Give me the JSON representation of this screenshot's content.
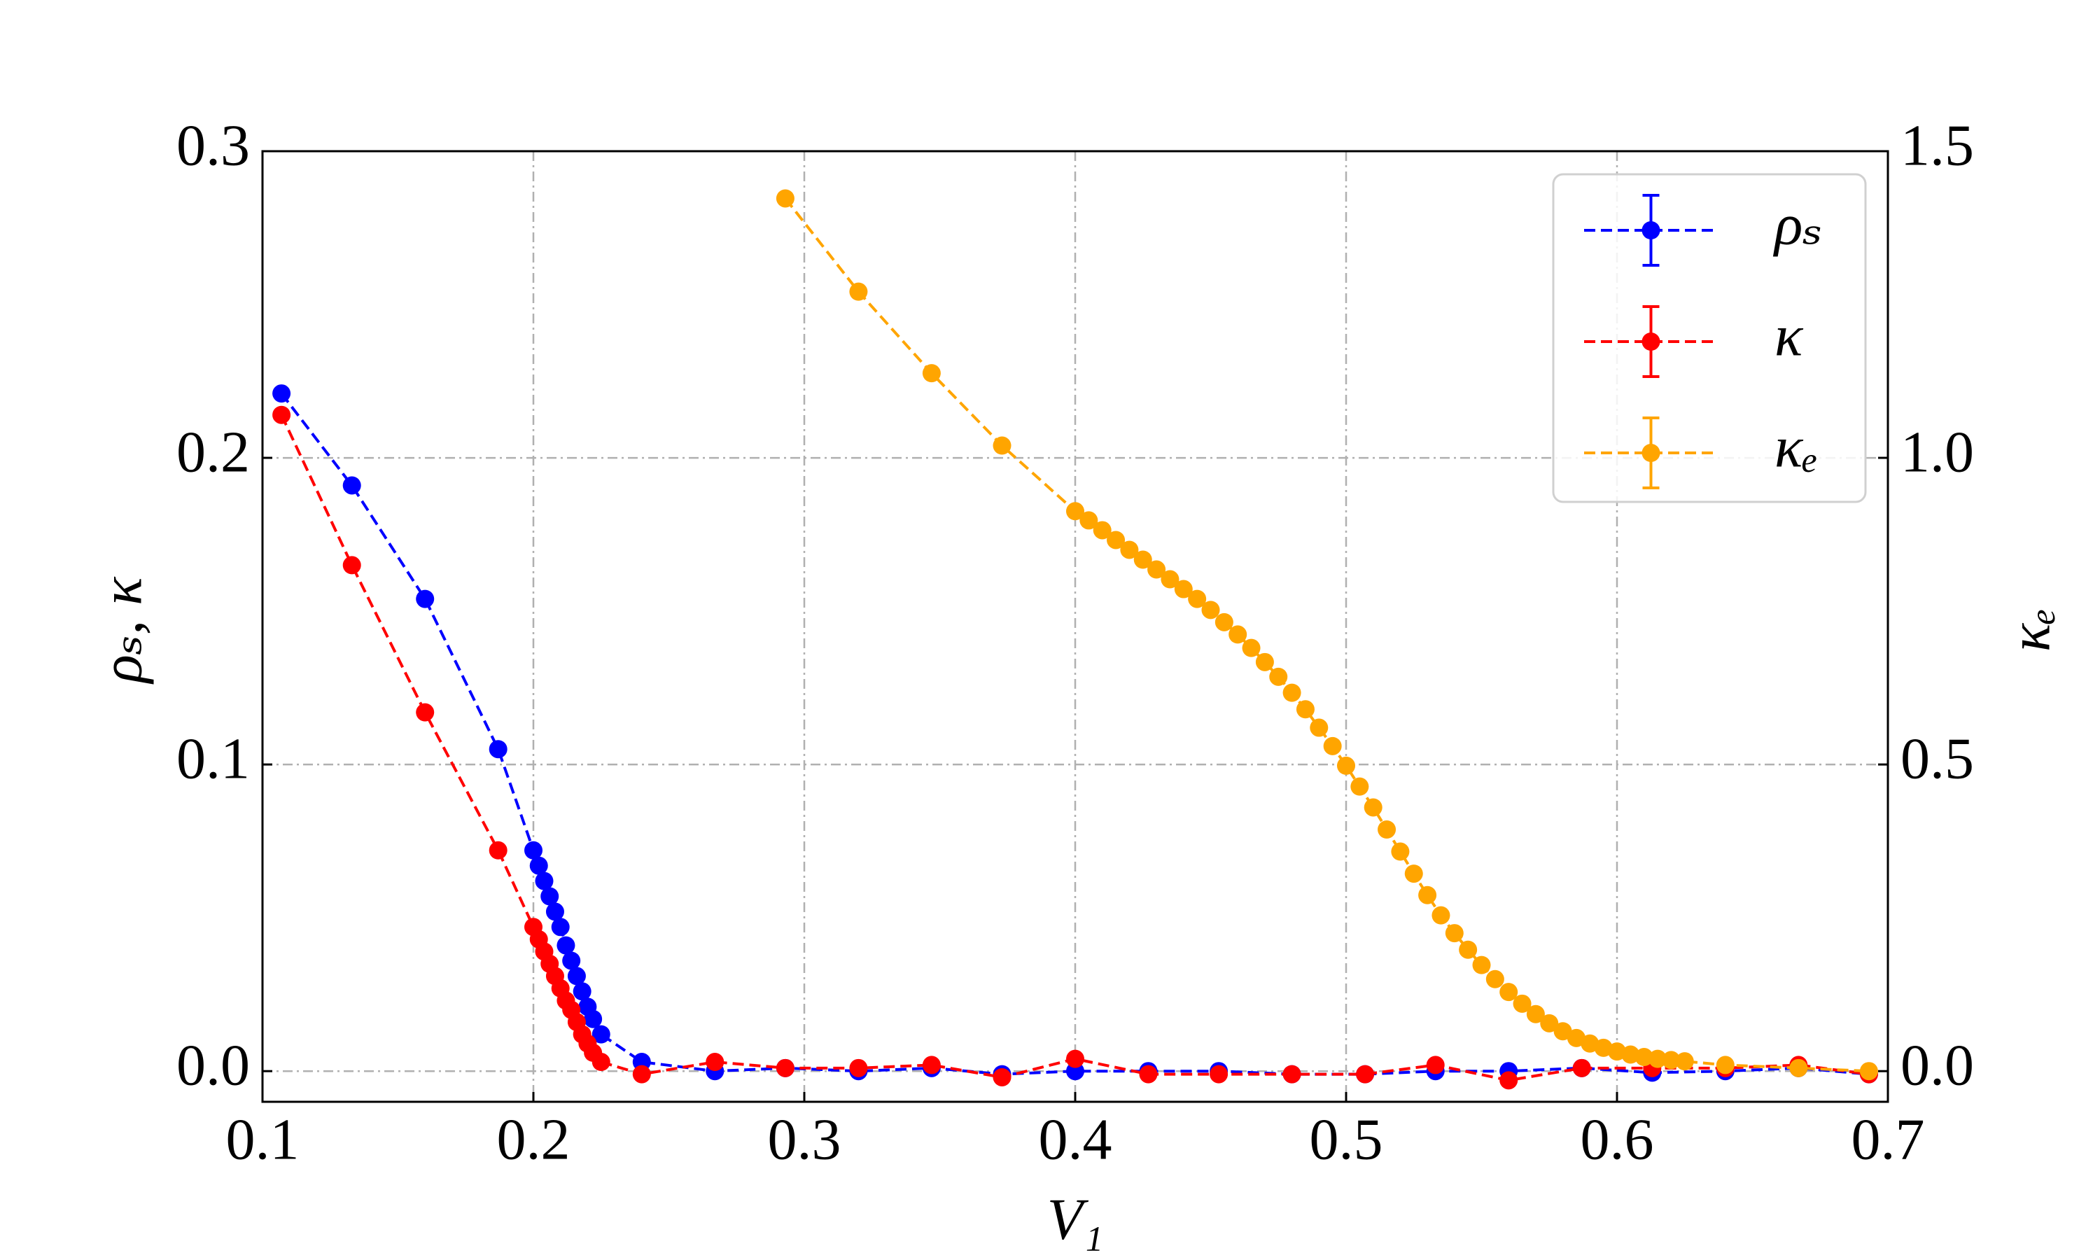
{
  "chart_data": {
    "type": "line",
    "x_label": "V₁",
    "y_label": "ρₛ, κ",
    "y2_label": "κₑ",
    "xlim": [
      0.1,
      0.7
    ],
    "xticks": [
      0.1,
      0.2,
      0.3,
      0.4,
      0.5,
      0.6,
      0.7
    ],
    "ylim": [
      -0.01,
      0.3
    ],
    "yticks": [
      {
        "value": 0,
        "label": "0.0"
      },
      0.1,
      0.2,
      0.3
    ],
    "y2lim": [
      -0.05,
      1.5
    ],
    "y2ticks": [
      {
        "value": 0,
        "label": "0.0"
      },
      0.5,
      {
        "value": 1,
        "label": "1.0"
      },
      1.5
    ],
    "grid": true,
    "legend": "upper right",
    "series": [
      {
        "name": "ρₛ",
        "color": "#0000ff",
        "x": [
          0.107,
          0.133,
          0.16,
          0.187,
          0.2,
          0.202,
          0.204,
          0.206,
          0.208,
          0.21,
          0.212,
          0.214,
          0.216,
          0.218,
          0.22,
          0.222,
          0.225,
          0.24,
          0.267,
          0.293,
          0.32,
          0.347,
          0.373,
          0.4,
          0.427,
          0.453,
          0.48,
          0.507,
          0.533,
          0.56,
          0.587,
          0.613,
          0.64,
          0.667,
          0.693
        ],
        "values": [
          0.221,
          0.191,
          0.154,
          0.105,
          0.072,
          0.067,
          0.062,
          0.057,
          0.052,
          0.047,
          0.041,
          0.036,
          0.031,
          0.026,
          0.021,
          0.017,
          0.012,
          0.003,
          0.0,
          0.001,
          0.0,
          0.001,
          -0.001,
          0.0,
          0.0,
          0.0,
          -0.001,
          -0.001,
          0.0,
          0.0,
          0.001,
          -0.0005,
          0.0,
          0.001,
          -0.001
        ]
      },
      {
        "name": "κ",
        "color": "#ff0000",
        "x": [
          0.107,
          0.133,
          0.16,
          0.187,
          0.2,
          0.202,
          0.204,
          0.206,
          0.208,
          0.21,
          0.212,
          0.214,
          0.216,
          0.218,
          0.22,
          0.222,
          0.225,
          0.24,
          0.267,
          0.293,
          0.32,
          0.347,
          0.373,
          0.4,
          0.427,
          0.453,
          0.48,
          0.507,
          0.533,
          0.56,
          0.587,
          0.613,
          0.64,
          0.667,
          0.693
        ],
        "values": [
          0.214,
          0.165,
          0.117,
          0.072,
          0.047,
          0.043,
          0.039,
          0.035,
          0.031,
          0.027,
          0.023,
          0.02,
          0.016,
          0.012,
          0.009,
          0.006,
          0.003,
          -0.001,
          0.003,
          0.001,
          0.001,
          0.002,
          -0.002,
          0.004,
          -0.001,
          -0.001,
          -0.001,
          -0.001,
          0.002,
          -0.003,
          0.001,
          0.001,
          0.001,
          0.002,
          -0.001
        ]
      },
      {
        "name": "κₑ",
        "color": "#ffa500",
        "axis": "y2",
        "x": [
          0.293,
          0.32,
          0.347,
          0.373,
          0.4,
          0.405,
          0.41,
          0.415,
          0.42,
          0.425,
          0.43,
          0.435,
          0.44,
          0.445,
          0.45,
          0.455,
          0.46,
          0.465,
          0.47,
          0.475,
          0.48,
          0.485,
          0.49,
          0.495,
          0.5,
          0.505,
          0.51,
          0.515,
          0.52,
          0.525,
          0.53,
          0.535,
          0.54,
          0.545,
          0.55,
          0.555,
          0.56,
          0.565,
          0.57,
          0.575,
          0.58,
          0.585,
          0.59,
          0.595,
          0.6,
          0.605,
          0.61,
          0.615,
          0.62,
          0.625,
          0.64,
          0.667,
          0.693
        ],
        "values": [
          1.423,
          1.271,
          1.138,
          1.02,
          0.913,
          0.898,
          0.882,
          0.866,
          0.85,
          0.834,
          0.818,
          0.802,
          0.786,
          0.77,
          0.752,
          0.732,
          0.712,
          0.69,
          0.667,
          0.643,
          0.617,
          0.59,
          0.56,
          0.53,
          0.498,
          0.464,
          0.43,
          0.394,
          0.358,
          0.322,
          0.287,
          0.254,
          0.225,
          0.198,
          0.173,
          0.15,
          0.129,
          0.11,
          0.093,
          0.078,
          0.065,
          0.054,
          0.045,
          0.038,
          0.032,
          0.027,
          0.023,
          0.02,
          0.018,
          0.016,
          0.01,
          0.005,
          0.0
        ]
      }
    ]
  }
}
